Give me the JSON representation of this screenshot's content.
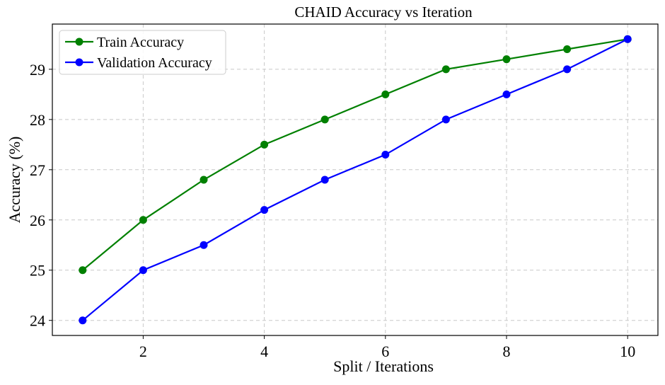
{
  "chart_data": {
    "type": "line",
    "title": "CHAID Accuracy vs Iteration",
    "xlabel": "Split / Iterations",
    "ylabel": "Accuracy (%)",
    "x": [
      1,
      2,
      3,
      4,
      5,
      6,
      7,
      8,
      9,
      10
    ],
    "xlim": [
      0.5,
      10.5
    ],
    "ylim": [
      23.7,
      29.9
    ],
    "xticks": [
      2,
      4,
      6,
      8,
      10
    ],
    "yticks": [
      24,
      25,
      26,
      27,
      28,
      29
    ],
    "grid": true,
    "legend_position": "top-left",
    "series": [
      {
        "name": "Train Accuracy",
        "color": "#008000",
        "marker": "circle",
        "values": [
          25.0,
          26.0,
          26.8,
          27.5,
          28.0,
          28.5,
          29.0,
          29.2,
          29.4,
          29.6
        ]
      },
      {
        "name": "Validation Accuracy",
        "color": "#0000ff",
        "marker": "circle",
        "values": [
          24.0,
          25.0,
          25.5,
          26.2,
          26.8,
          27.3,
          28.0,
          28.5,
          29.0,
          29.6
        ]
      }
    ]
  }
}
